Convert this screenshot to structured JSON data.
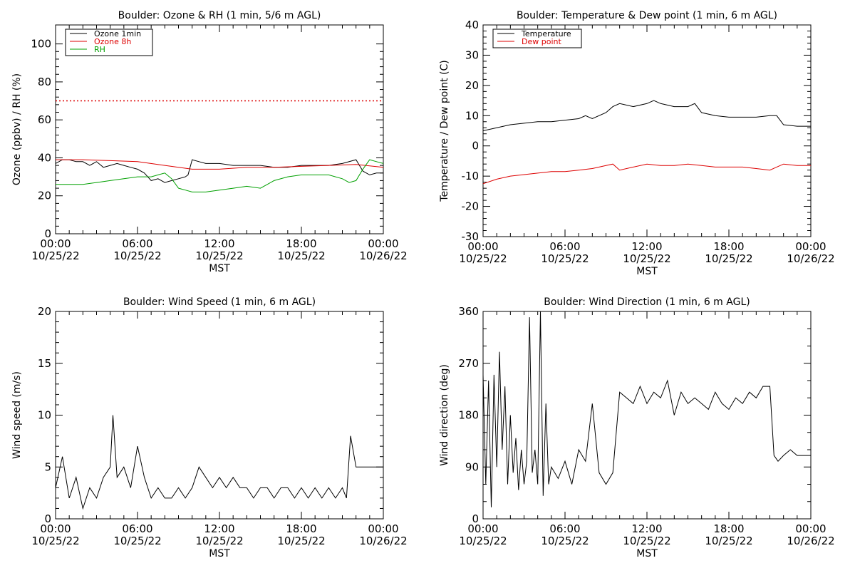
{
  "colors": {
    "black": "#000000",
    "red": "#dd0000",
    "green": "#00a000"
  },
  "x_axis": {
    "label": "MST",
    "tick_times": [
      "00:00",
      "06:00",
      "12:00",
      "18:00",
      "00:00"
    ],
    "tick_dates": [
      "10/25/22",
      "10/25/22",
      "10/25/22",
      "10/25/22",
      "10/26/22"
    ],
    "range_hours": [
      0,
      24
    ]
  },
  "chart_data": [
    {
      "id": "ozone-rh",
      "type": "line",
      "title": "Boulder: Ozone & RH (1 min, 5/6 m AGL)",
      "ylabel": "Ozone (ppbv) / RH (%)",
      "ylim": [
        0,
        110
      ],
      "yticks": [
        0,
        20,
        40,
        60,
        80,
        100
      ],
      "threshold": {
        "value": 70,
        "color": "#dd0000",
        "style": "dotted"
      },
      "legend_position": "top-left",
      "series": [
        {
          "name": "Ozone 1min",
          "color": "#000000",
          "x": [
            0,
            0.5,
            1,
            1.5,
            2,
            2.5,
            3,
            3.5,
            4,
            4.5,
            5,
            5.5,
            6,
            6.5,
            7,
            7.5,
            8,
            8.5,
            9,
            9.5,
            9.7,
            10,
            10.5,
            11,
            12,
            13,
            14,
            15,
            16,
            17,
            18,
            19,
            20,
            21,
            22,
            22.5,
            23,
            23.5,
            24
          ],
          "y": [
            37,
            39,
            39,
            38,
            38,
            36,
            38,
            35,
            36,
            37,
            36,
            35,
            34,
            32,
            28,
            29,
            27,
            28,
            29,
            30,
            31,
            39,
            38,
            37,
            37,
            36,
            36,
            36,
            35,
            35,
            36,
            36,
            36,
            37,
            39,
            33,
            31,
            32,
            32
          ]
        },
        {
          "name": "Ozone 8h",
          "color": "#dd0000",
          "x": [
            0,
            2,
            4,
            6,
            8,
            10,
            12,
            14,
            16,
            18,
            20,
            22,
            24
          ],
          "y": [
            39,
            39,
            38.5,
            38,
            36,
            34,
            34,
            35,
            35,
            35.5,
            36,
            36.5,
            35
          ]
        },
        {
          "name": "RH",
          "color": "#00a000",
          "x": [
            0,
            1,
            2,
            3,
            4,
            5,
            6,
            7,
            7.5,
            8,
            8.5,
            9,
            9.5,
            10,
            11,
            12,
            13,
            14,
            15,
            16,
            17,
            18,
            19,
            20,
            21,
            21.5,
            22,
            22.5,
            23,
            23.5,
            24
          ],
          "y": [
            26,
            26,
            26,
            27,
            28,
            29,
            30,
            30,
            31,
            32,
            29,
            24,
            23,
            22,
            22,
            23,
            24,
            25,
            24,
            28,
            30,
            31,
            31,
            31,
            29,
            27,
            28,
            34,
            39,
            38,
            37
          ]
        }
      ]
    },
    {
      "id": "temp-dew",
      "type": "line",
      "title": "Boulder: Temperature & Dew point (1 min, 6 m AGL)",
      "ylabel": "Temperature / Dew point (C)",
      "ylim": [
        -30,
        40
      ],
      "yticks": [
        -30,
        -20,
        -10,
        0,
        10,
        20,
        30,
        40
      ],
      "legend_position": "top-left",
      "series": [
        {
          "name": "Temperature",
          "color": "#000000",
          "x": [
            0,
            1,
            2,
            3,
            4,
            5,
            6,
            7,
            7.5,
            8,
            9,
            9.5,
            10,
            11,
            12,
            12.5,
            13,
            14,
            15,
            15.5,
            16,
            17,
            18,
            19,
            20,
            21,
            21.5,
            22,
            23,
            24
          ],
          "y": [
            5,
            6,
            7,
            7.5,
            8,
            8,
            8.5,
            9,
            10,
            9,
            11,
            13,
            14,
            13,
            14,
            15,
            14,
            13,
            13,
            14,
            11,
            10,
            9.5,
            9.5,
            9.5,
            10,
            10,
            7,
            6.5,
            6.5
          ]
        },
        {
          "name": "Dew point",
          "color": "#dd0000",
          "x": [
            0,
            1,
            2,
            3,
            4,
            5,
            6,
            7,
            8,
            9,
            9.5,
            10,
            11,
            12,
            13,
            14,
            15,
            16,
            17,
            18,
            19,
            20,
            21,
            21.5,
            22,
            23,
            24
          ],
          "y": [
            -12.5,
            -11,
            -10,
            -9.5,
            -9,
            -8.5,
            -8.5,
            -8,
            -7.5,
            -6.5,
            -6,
            -8,
            -7,
            -6,
            -6.5,
            -6.5,
            -6,
            -6.5,
            -7,
            -7,
            -7,
            -7.5,
            -8,
            -7,
            -6,
            -6.5,
            -6.5
          ]
        }
      ]
    },
    {
      "id": "wind-speed",
      "type": "line",
      "title": "Boulder: Wind Speed (1 min, 6 m AGL)",
      "ylabel": "Wind speed (m/s)",
      "ylim": [
        0,
        20
      ],
      "yticks": [
        0,
        5,
        10,
        15,
        20
      ],
      "legend_position": "none",
      "series": [
        {
          "name": "",
          "color": "#000000",
          "x": [
            0,
            0.5,
            1,
            1.5,
            2,
            2.5,
            3,
            3.5,
            4,
            4.2,
            4.5,
            5,
            5.5,
            6,
            6.5,
            7,
            7.5,
            8,
            8.5,
            9,
            9.5,
            10,
            10.5,
            11,
            11.5,
            12,
            12.5,
            13,
            13.5,
            14,
            14.5,
            15,
            15.5,
            16,
            16.5,
            17,
            17.5,
            18,
            18.5,
            19,
            19.5,
            20,
            20.5,
            21,
            21.3,
            21.6,
            22,
            22.5,
            23,
            23.5,
            24
          ],
          "y": [
            3,
            6,
            2,
            4,
            1,
            3,
            2,
            4,
            5,
            10,
            4,
            5,
            3,
            7,
            4,
            2,
            3,
            2,
            2,
            3,
            2,
            3,
            5,
            4,
            3,
            4,
            3,
            4,
            3,
            3,
            2,
            3,
            3,
            2,
            3,
            3,
            2,
            3,
            2,
            3,
            2,
            3,
            2,
            3,
            2,
            8,
            5,
            5,
            5,
            5,
            5
          ]
        }
      ]
    },
    {
      "id": "wind-dir",
      "type": "line",
      "title": "Boulder: Wind Direction (1 min, 6 m AGL)",
      "ylabel": "Wind direction (deg)",
      "ylim": [
        0,
        360
      ],
      "yticks": [
        0,
        90,
        180,
        270,
        360
      ],
      "legend_position": "none",
      "series": [
        {
          "name": "",
          "color": "#000000",
          "x": [
            0,
            0.2,
            0.4,
            0.6,
            0.8,
            1,
            1.2,
            1.4,
            1.6,
            1.8,
            2,
            2.2,
            2.4,
            2.6,
            2.8,
            3,
            3.2,
            3.4,
            3.6,
            3.8,
            4,
            4.2,
            4.4,
            4.6,
            4.8,
            5,
            5.5,
            6,
            6.5,
            7,
            7.5,
            8,
            8.5,
            9,
            9.5,
            10,
            10.5,
            11,
            11.5,
            12,
            12.5,
            13,
            13.5,
            14,
            14.5,
            15,
            15.5,
            16,
            16.5,
            17,
            17.5,
            18,
            18.5,
            19,
            19.5,
            20,
            20.5,
            21,
            21.3,
            21.6,
            22,
            22.5,
            23,
            23.5,
            24
          ],
          "y": [
            250,
            60,
            240,
            20,
            250,
            90,
            290,
            120,
            230,
            60,
            180,
            80,
            140,
            50,
            120,
            60,
            100,
            350,
            80,
            120,
            60,
            360,
            40,
            200,
            60,
            90,
            70,
            100,
            60,
            120,
            100,
            200,
            80,
            60,
            80,
            220,
            210,
            200,
            230,
            200,
            220,
            210,
            240,
            180,
            220,
            200,
            210,
            200,
            190,
            220,
            200,
            190,
            210,
            200,
            220,
            210,
            230,
            230,
            110,
            100,
            110,
            120,
            110,
            110,
            110
          ]
        }
      ]
    }
  ]
}
